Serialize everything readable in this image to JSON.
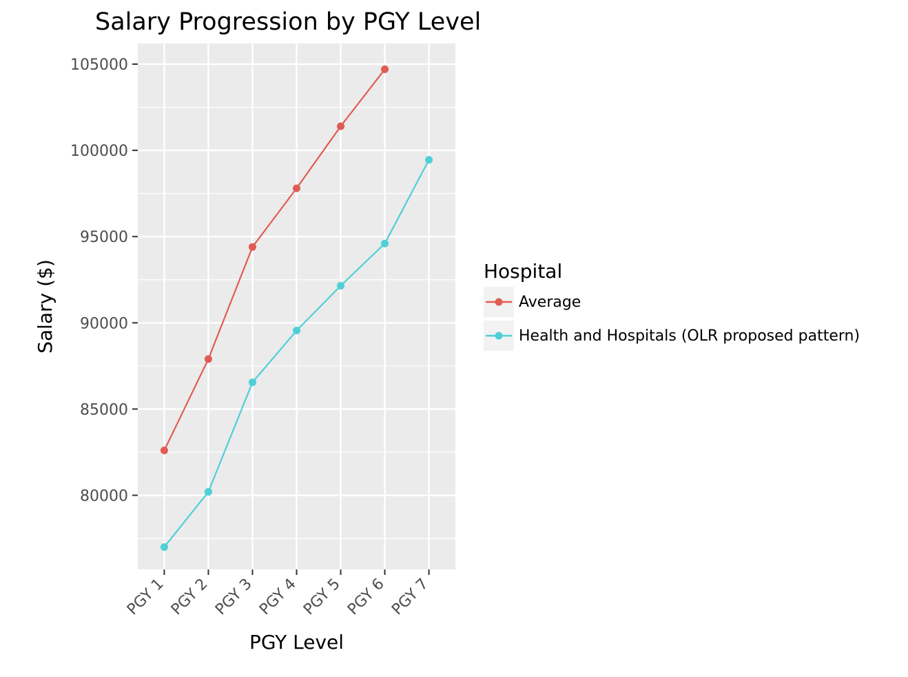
{
  "chart_data": {
    "type": "line",
    "title": "Salary Progression by PGY Level",
    "xlabel": "PGY Level",
    "ylabel": "Salary ($)",
    "categories": [
      "PGY 1",
      "PGY 2",
      "PGY 3",
      "PGY 4",
      "PGY 5",
      "PGY 6",
      "PGY 7"
    ],
    "ylim": [
      75700,
      106200
    ],
    "yticks": [
      80000,
      85000,
      90000,
      95000,
      100000,
      105000
    ],
    "grid": true,
    "legend": {
      "title": "Hospital",
      "position": "right"
    },
    "series": [
      {
        "name": "Average",
        "color": "#e05c52",
        "values": [
          82600,
          87900,
          94400,
          97800,
          101400,
          104700,
          null
        ]
      },
      {
        "name": "Health and Hospitals (OLR proposed pattern)",
        "color": "#4fcfd6",
        "values": [
          77000,
          80200,
          86550,
          89550,
          92150,
          94600,
          99450
        ]
      }
    ]
  }
}
